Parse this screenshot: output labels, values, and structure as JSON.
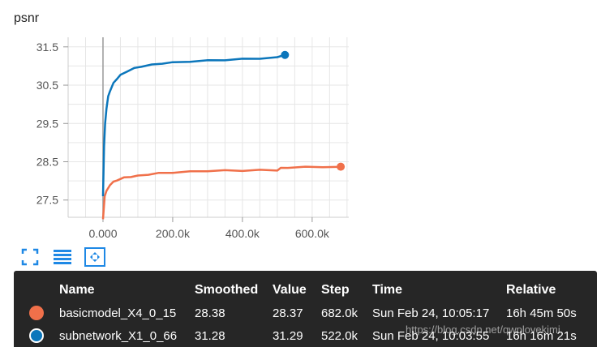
{
  "chart_title": "psnr",
  "chart_data": {
    "type": "line",
    "title": "psnr",
    "xlabel": "",
    "ylabel": "",
    "xlim": [
      -100000,
      705000
    ],
    "ylim": [
      27.05,
      31.75
    ],
    "x_ticks": [
      0,
      200000,
      400000,
      600000
    ],
    "x_tick_labels": [
      "0.000",
      "200.0k",
      "400.0k",
      "600.0k"
    ],
    "y_ticks": [
      27.5,
      28.5,
      29.5,
      30.5,
      31.5
    ],
    "y_tick_labels": [
      "27.5",
      "28.5",
      "29.5",
      "30.5",
      "31.5"
    ],
    "grid": true,
    "series": [
      {
        "name": "basicmodel_X4_0_15",
        "color": "#f0704a",
        "x": [
          0,
          5000,
          10000,
          20000,
          30000,
          40000,
          60000,
          80000,
          100000,
          130000,
          160000,
          200000,
          250000,
          300000,
          350000,
          400000,
          450000,
          500000,
          510000,
          530000,
          580000,
          630000,
          682000
        ],
        "values": [
          27.0,
          27.6,
          27.74,
          27.9,
          27.97,
          28.02,
          28.08,
          28.11,
          28.13,
          28.17,
          28.2,
          28.22,
          28.24,
          28.26,
          28.27,
          28.27,
          28.28,
          28.28,
          28.33,
          28.35,
          28.36,
          28.37,
          28.37
        ]
      },
      {
        "name": "subnetwork_X1_0_66",
        "color": "#0b76bb",
        "x": [
          0,
          3000,
          6000,
          10000,
          15000,
          20000,
          30000,
          40000,
          50000,
          70000,
          90000,
          110000,
          140000,
          170000,
          200000,
          250000,
          300000,
          350000,
          400000,
          450000,
          500000,
          522000
        ],
        "values": [
          27.6,
          28.9,
          29.5,
          29.9,
          30.2,
          30.35,
          30.55,
          30.67,
          30.76,
          30.87,
          30.94,
          30.99,
          31.03,
          31.07,
          31.09,
          31.12,
          31.14,
          31.16,
          31.18,
          31.2,
          31.22,
          31.29
        ]
      }
    ]
  },
  "toolbar": {
    "expand_icon": "fullscreen-icon",
    "log_icon": "log-scale-icon",
    "fit_icon": "fit-domain-icon"
  },
  "table": {
    "headers": [
      "Name",
      "Smoothed",
      "Value",
      "Step",
      "Time",
      "Relative"
    ],
    "rows": [
      {
        "swatch": "#f0704a",
        "name": "basicmodel_X4_0_15",
        "smoothed": "28.38",
        "value": "28.37",
        "step": "682.0k",
        "time": "Sun Feb 24, 10:05:17",
        "relative": "16h 45m 50s"
      },
      {
        "swatch": "#0b76bb",
        "name": "subnetwork_X1_0_66",
        "smoothed": "31.28",
        "value": "31.29",
        "step": "522.0k",
        "time": "Sun Feb 24, 10:03:55",
        "relative": "16h 16m 21s"
      }
    ]
  },
  "watermark": "https://blog.csdn.net/qwplovekimi"
}
